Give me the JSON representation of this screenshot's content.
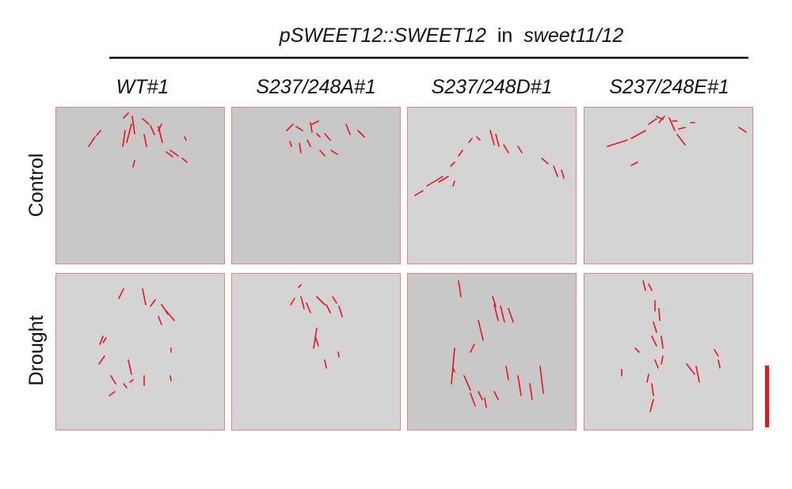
{
  "header": {
    "title": [
      "pSWEET12::SWEET12",
      "in",
      "sweet11/12"
    ]
  },
  "columns": [
    "WT#1",
    "S237/248A#1",
    "S237/248D#1",
    "S237/248E#1"
  ],
  "rows": [
    "Control",
    "Drought"
  ]
}
